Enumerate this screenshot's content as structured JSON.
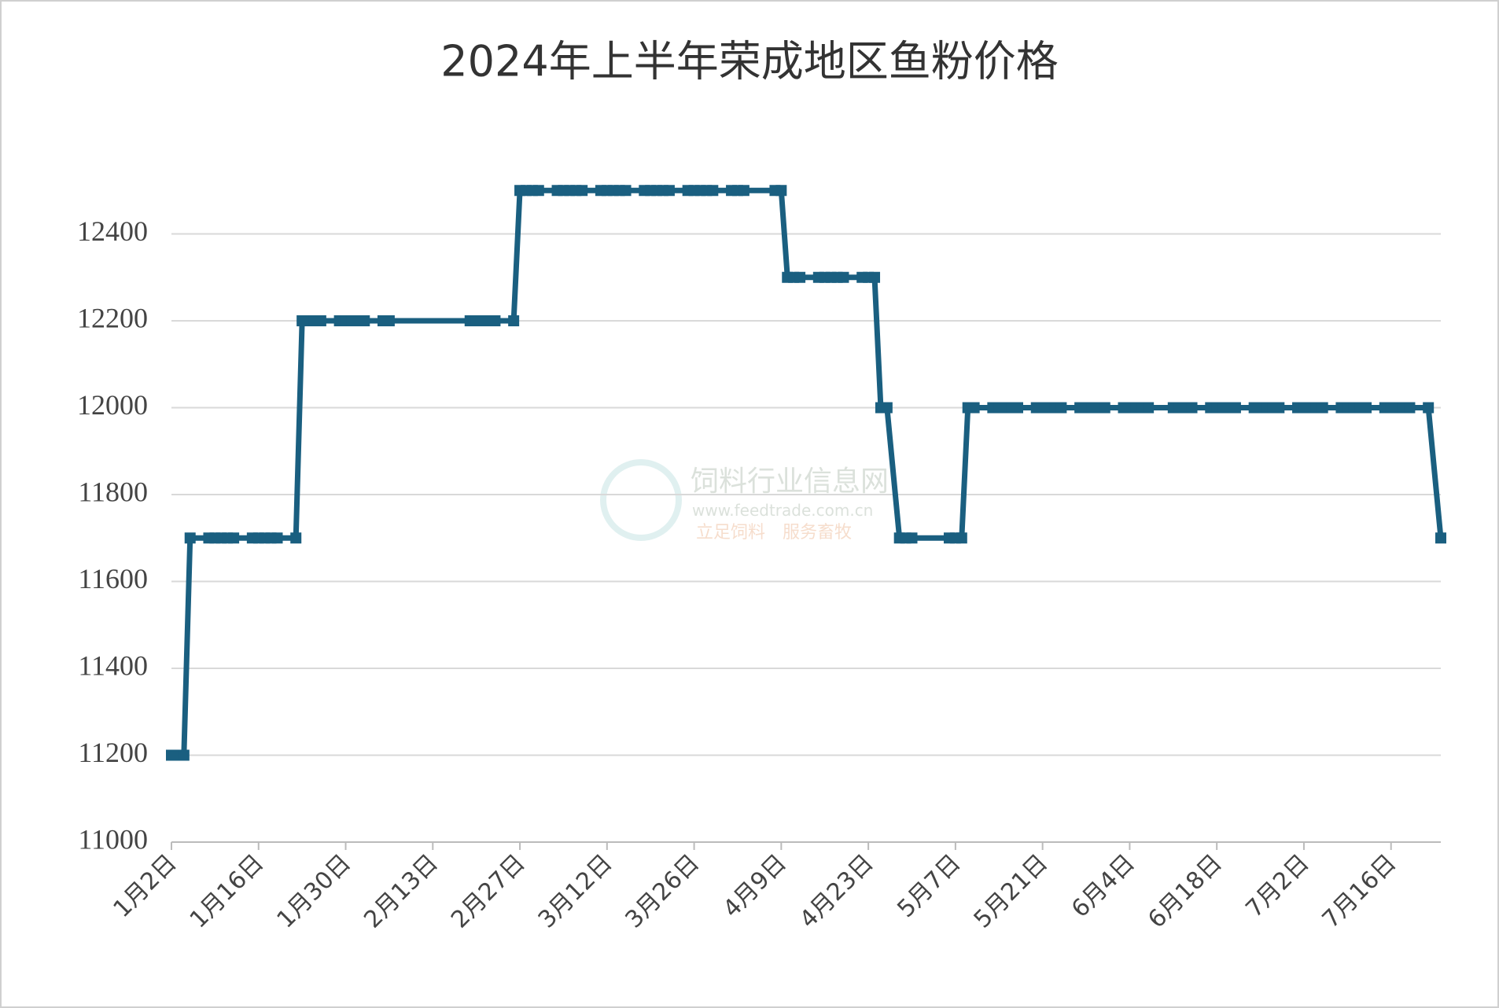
{
  "chart_data": {
    "type": "line",
    "title": "2024年上半年荣成地区鱼粉价格",
    "watermark": [
      "饲料行业信息网",
      "www.feedtrade.com.cn",
      "立足饲料　服务畜牧"
    ],
    "xticks": [
      "1月2日",
      "1月16日",
      "1月30日",
      "2月13日",
      "2月27日",
      "3月12日",
      "3月26日",
      "4月9日",
      "4月23日",
      "5月7日",
      "5月21日",
      "6月4日",
      "6月18日",
      "7月2日",
      "7月16日"
    ],
    "ylim": [
      11000,
      12600
    ],
    "yticks": [
      11000,
      11200,
      11400,
      11600,
      11800,
      12000,
      12200,
      12400
    ],
    "grid": true,
    "series": [
      {
        "color": "#1a5f80",
        "x": [
          "1月2日",
          "1月3日",
          "1月4日",
          "1月5日",
          "1月8日",
          "1月9日",
          "1月10日",
          "1月11日",
          "1月12日",
          "1月15日",
          "1月16日",
          "1月17日",
          "1月18日",
          "1月19日",
          "1月22日",
          "1月23日",
          "1月24日",
          "1月25日",
          "1月26日",
          "1月29日",
          "1月30日",
          "1月31日",
          "2月1日",
          "2月2日",
          "2月5日",
          "2月6日",
          "2月19日",
          "2月20日",
          "2月21日",
          "2月22日",
          "2月23日",
          "2月26日",
          "2月27日",
          "2月28日",
          "2月29日",
          "3月1日",
          "3月4日",
          "3月5日",
          "3月6日",
          "3月7日",
          "3月8日",
          "3月11日",
          "3月12日",
          "3月13日",
          "3月14日",
          "3月15日",
          "3月18日",
          "3月19日",
          "3月20日",
          "3月21日",
          "3月22日",
          "3月25日",
          "3月26日",
          "3月27日",
          "3月28日",
          "3月29日",
          "4月1日",
          "4月2日",
          "4月3日",
          "4月8日",
          "4月9日",
          "4月10日",
          "4月11日",
          "4月12日",
          "4月15日",
          "4月16日",
          "4月17日",
          "4月18日",
          "4月19日",
          "4月22日",
          "4月23日",
          "4月24日",
          "4月25日",
          "4月26日",
          "4月28日",
          "4月29日",
          "4月30日",
          "5月6日",
          "5月7日",
          "5月8日",
          "5月9日",
          "5月10日",
          "5月13日",
          "5月14日",
          "5月15日",
          "5月16日",
          "5月17日",
          "5月20日",
          "5月21日",
          "5月22日",
          "5月23日",
          "5月24日",
          "5月27日",
          "5月28日",
          "5月29日",
          "5月30日",
          "5月31日",
          "6月3日",
          "6月4日",
          "6月5日",
          "6月6日",
          "6月7日",
          "6月11日",
          "6月12日",
          "6月13日",
          "6月14日",
          "6月17日",
          "6月18日",
          "6月19日",
          "6月20日",
          "6月21日",
          "6月24日",
          "6月25日",
          "6月26日",
          "6月27日",
          "6月28日",
          "7月1日",
          "7月2日",
          "7月3日",
          "7月4日",
          "7月5日",
          "7月8日",
          "7月9日",
          "7月10日",
          "7月11日",
          "7月12日",
          "7月15日",
          "7月16日",
          "7月17日",
          "7月18日",
          "7月19日",
          "7月22日",
          "7月24日"
        ],
        "values": [
          11200,
          11200,
          11200,
          11700,
          11700,
          11700,
          11700,
          11700,
          11700,
          11700,
          11700,
          11700,
          11700,
          11700,
          11700,
          12200,
          12200,
          12200,
          12200,
          12200,
          12200,
          12200,
          12200,
          12200,
          12200,
          12200,
          12200,
          12200,
          12200,
          12200,
          12200,
          12200,
          12500,
          12500,
          12500,
          12500,
          12500,
          12500,
          12500,
          12500,
          12500,
          12500,
          12500,
          12500,
          12500,
          12500,
          12500,
          12500,
          12500,
          12500,
          12500,
          12500,
          12500,
          12500,
          12500,
          12500,
          12500,
          12500,
          12500,
          12500,
          12500,
          12300,
          12300,
          12300,
          12300,
          12300,
          12300,
          12300,
          12300,
          12300,
          12300,
          12300,
          12000,
          12000,
          11700,
          11700,
          11700,
          11700,
          11700,
          11700,
          12000,
          12000,
          12000,
          12000,
          12000,
          12000,
          12000,
          12000,
          12000,
          12000,
          12000,
          12000,
          12000,
          12000,
          12000,
          12000,
          12000,
          12000,
          12000,
          12000,
          12000,
          12000,
          12000,
          12000,
          12000,
          12000,
          12000,
          12000,
          12000,
          12000,
          12000,
          12000,
          12000,
          12000,
          12000,
          12000,
          12000,
          12000,
          12000,
          12000,
          12000,
          12000,
          12000,
          12000,
          12000,
          12000,
          12000,
          12000,
          12000,
          12000,
          12000,
          12000,
          11700
        ]
      }
    ]
  }
}
